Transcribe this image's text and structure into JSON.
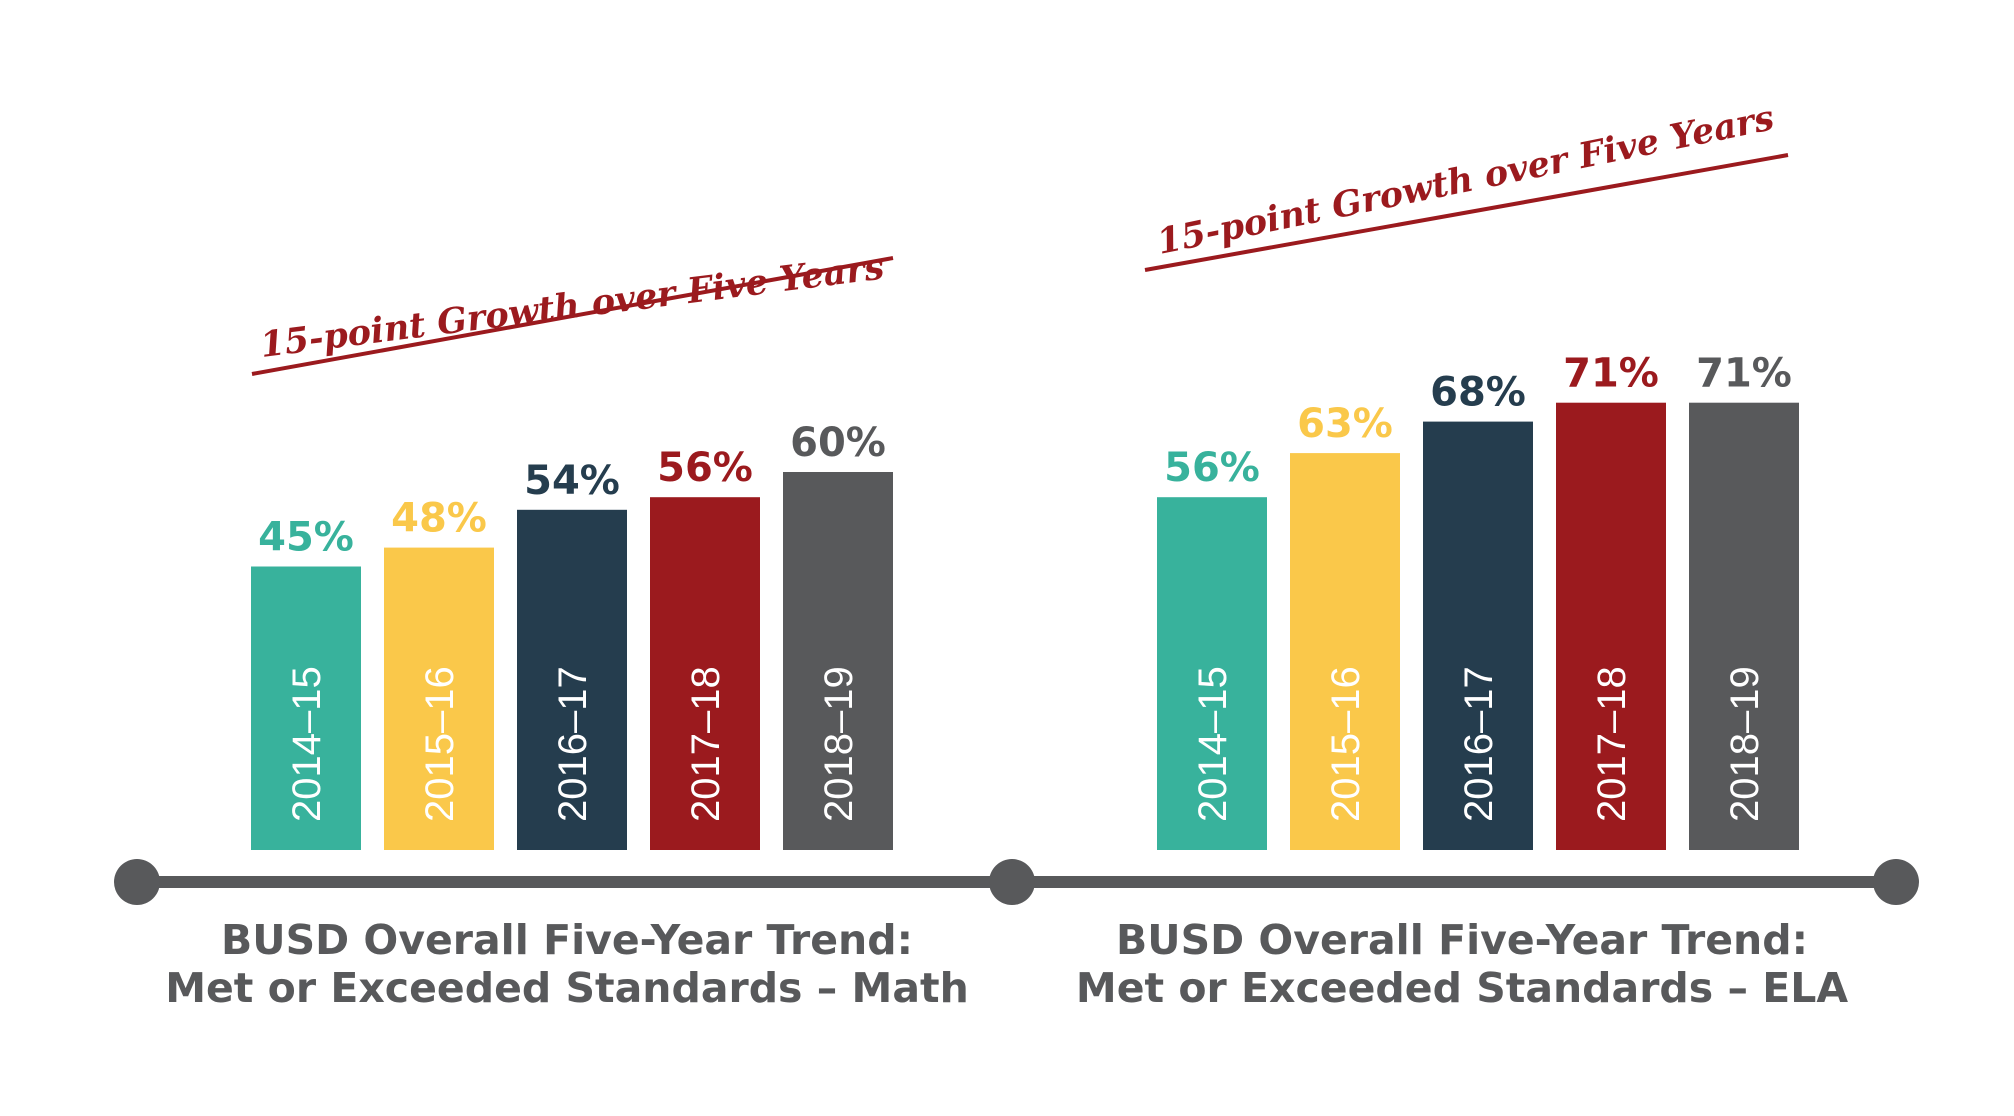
{
  "colors": {
    "teal": "#38b29c",
    "yellow": "#fac84a",
    "navy": "#253d4e",
    "red": "#9b1a1e",
    "gray": "#58595b",
    "axis": "#58595b",
    "annotation": "#9b1a1e"
  },
  "chart_data": [
    {
      "type": "bar",
      "categories": [
        "2014–15",
        "2015–16",
        "2016–17",
        "2017–18",
        "2018–19"
      ],
      "values": [
        45,
        48,
        54,
        56,
        60
      ],
      "value_labels": [
        "45%",
        "48%",
        "54%",
        "56%",
        "60%"
      ],
      "bar_colors": [
        "#38b29c",
        "#fac84a",
        "#253d4e",
        "#9b1a1e",
        "#58595b"
      ],
      "annotation": "15-point Growth over Five Years",
      "title_lines": [
        "BUSD Overall Five-Year Trend:",
        "Met or Exceeded Standards – Math"
      ],
      "category_labels_position": "inside-bar-vertical",
      "grid": false,
      "legend": "none"
    },
    {
      "type": "bar",
      "categories": [
        "2014–15",
        "2015–16",
        "2016–17",
        "2017–18",
        "2018–19"
      ],
      "values": [
        56,
        63,
        68,
        71,
        71
      ],
      "value_labels": [
        "56%",
        "63%",
        "68%",
        "71%",
        "71%"
      ],
      "bar_colors": [
        "#38b29c",
        "#fac84a",
        "#253d4e",
        "#9b1a1e",
        "#58595b"
      ],
      "annotation": "15-point Growth over Five Years",
      "title_lines": [
        "BUSD Overall Five-Year Trend:",
        "Met or Exceeded Standards – ELA"
      ],
      "category_labels_position": "inside-bar-vertical",
      "grid": false,
      "legend": "none"
    }
  ]
}
